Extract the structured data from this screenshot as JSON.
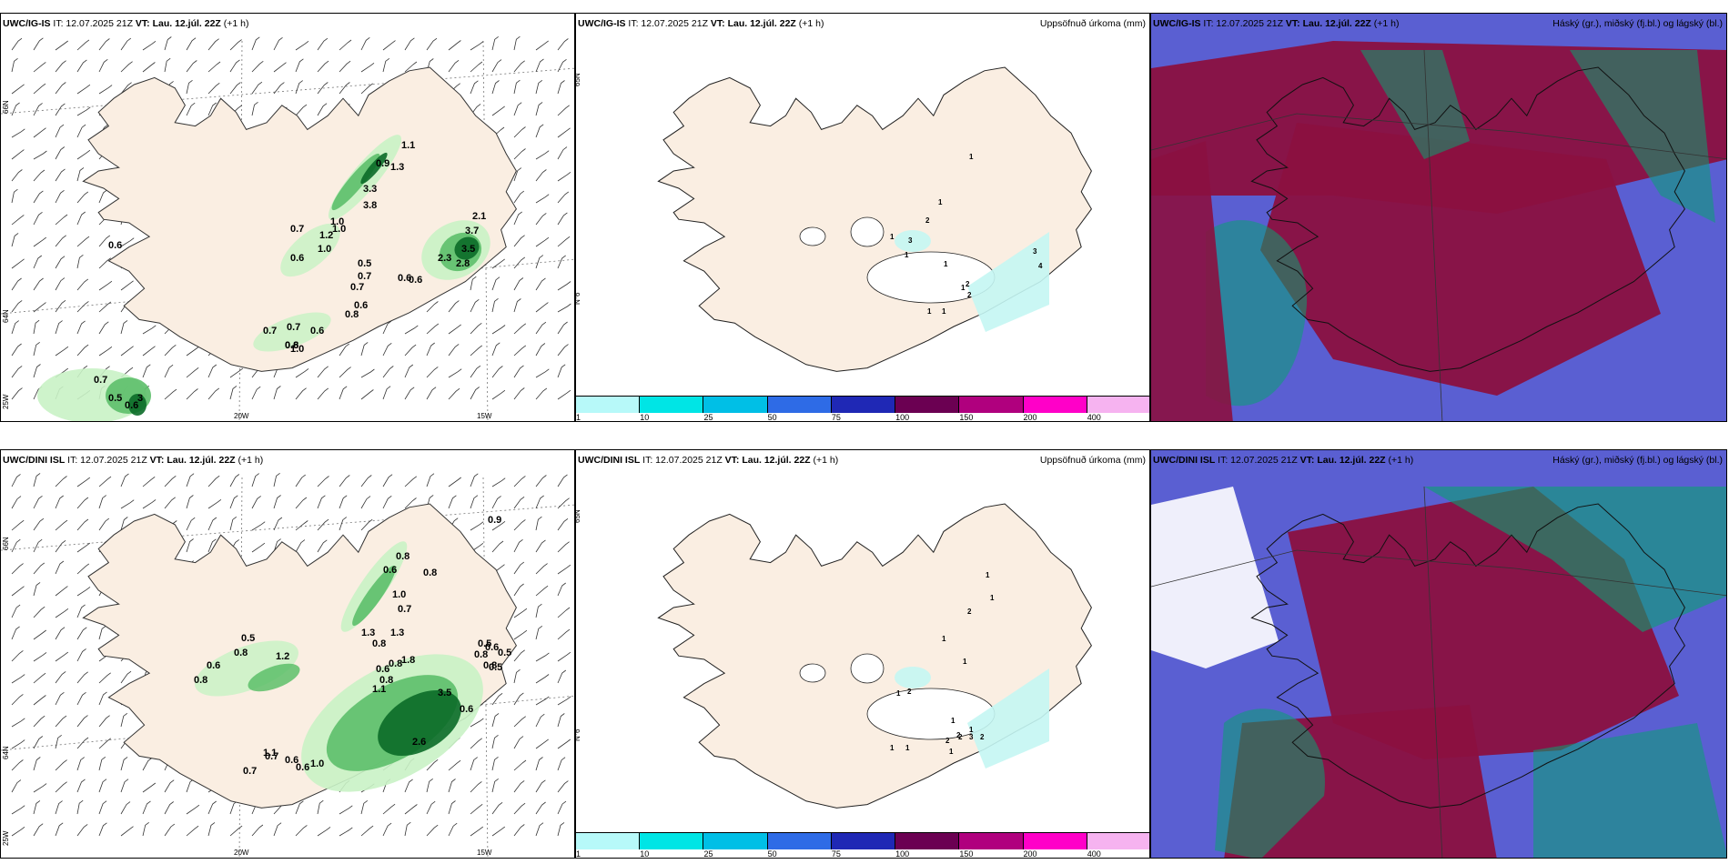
{
  "panels": [
    {
      "id": "p1",
      "source": "UWC/IG-IS",
      "it_label": " IT: 12.07.2025 21Z ",
      "vt_label": "VT: Lau. 12.júl. 22Z",
      "lead": " (+1 h)",
      "right_title": "",
      "kind": "wind",
      "grid_labels": {
        "lat_a": "66N",
        "lat_b": "64N",
        "lat_c": "25W",
        "lon_a": "20W",
        "lon_b": "15W"
      },
      "values": [
        "0.6",
        "1.1",
        "0.9",
        "1.3",
        "3.3",
        "3.8",
        "2.1",
        "1.0",
        "0.7",
        "1.0",
        "1.2",
        "1.0",
        "0.6",
        "3.7",
        "3.5",
        "2.3",
        "2.8",
        "0.5",
        "0.7",
        "0.7",
        "0.6",
        "0.6",
        "0.6",
        "0.8",
        "0.7",
        "0.7",
        "0.6",
        "0.6",
        "0.8",
        "1.0",
        "0.7",
        "0.5",
        "3",
        "0.6"
      ]
    },
    {
      "id": "p2",
      "source": "UWC/IG-IS",
      "it_label": " IT: 12.07.2025 21Z ",
      "vt_label": "VT: Lau. 12.júl. 22Z",
      "lead": " (+1 h)",
      "right_title": "Uppsöfnuð úrkoma (mm)",
      "kind": "precip",
      "grid_labels": {
        "lat_a": "65N",
        "lat_b": "N°6"
      },
      "values": [
        "1",
        "1",
        "2",
        "3",
        "1",
        "1",
        "2",
        "2",
        "3",
        "4",
        "1",
        "1",
        "1",
        "1"
      ]
    },
    {
      "id": "p3",
      "source": "UWC/IG-IS",
      "it_label": " IT: 12.07.2025 21Z ",
      "vt_label": "VT: Lau. 12.júl. 22Z",
      "lead": " (+1 h)",
      "right_title": "Háský (gr.), miðský (fj.bl.) og lágský (bl.)",
      "kind": "cloud",
      "values": []
    },
    {
      "id": "p4",
      "source": "UWC/DINI ISL",
      "it_label": " IT: 12.07.2025 21Z ",
      "vt_label": "VT: Lau. 12.júl. 22Z",
      "lead": " (+1 h)",
      "right_title": "",
      "kind": "wind",
      "grid_labels": {
        "lat_a": "66N",
        "lat_b": "64N",
        "lat_c": "25W",
        "lon_a": "20W",
        "lon_b": "15W"
      },
      "values": [
        "0.9",
        "0.8",
        "0.6",
        "0.8",
        "1.0",
        "0.7",
        "1.3",
        "1.3",
        "0.8",
        "0.8",
        "0.6",
        "0.8",
        "1.8",
        "1.1",
        "0.5",
        "0.8",
        "0.6",
        "0.8",
        "1.2",
        "3.5",
        "0.6",
        "1.1",
        "0.7",
        "0.7",
        "0.6",
        "2.6",
        "1.0",
        "0.6",
        "0.5",
        "0.6",
        "0.8",
        "0.8",
        "0.5",
        "0.5"
      ]
    },
    {
      "id": "p5",
      "source": "UWC/DINI ISL",
      "it_label": " IT: 12.07.2025 21Z ",
      "vt_label": "VT: Lau. 12.júl. 22Z",
      "lead": " (+1 h)",
      "right_title": "Uppsöfnuð úrkoma (mm)",
      "kind": "precip",
      "grid_labels": {
        "lat_a": "65N",
        "lat_b": "N°6"
      },
      "values": [
        "1",
        "1",
        "2",
        "1",
        "1",
        "1",
        "2",
        "1",
        "2",
        "1",
        "1",
        "2",
        "2",
        "3",
        "1",
        "2",
        "1"
      ]
    },
    {
      "id": "p6",
      "source": "UWC/DINI ISL",
      "it_label": " IT: 12.07.2025 21Z ",
      "vt_label": "VT: Lau. 12.júl. 22Z",
      "lead": " (+1 h)",
      "right_title": "Háský (gr.), miðský (fj.bl.) og lágský (bl.)",
      "kind": "cloud",
      "values": []
    }
  ],
  "colorbar": {
    "labels": [
      "1",
      "10",
      "25",
      "50",
      "75",
      "100",
      "150",
      "200",
      "400"
    ],
    "colors": [
      "#b7f9f9",
      "#00e5e5",
      "#00bfe6",
      "#2e6be6",
      "#1f28b5",
      "#6b0052",
      "#b0007e",
      "#ff00c8",
      "#f6b3f0"
    ]
  },
  "colors": {
    "land": "#faeee2",
    "precip_light": "#c4f6f3",
    "rain_light": "#c9f2c5",
    "rain_mid": "#5dbf6a",
    "rain_dark": "#0b6c28",
    "cloud_high": "#0aa071",
    "cloud_mid": "#8b1040",
    "cloud_low": "#5a5fd2"
  }
}
